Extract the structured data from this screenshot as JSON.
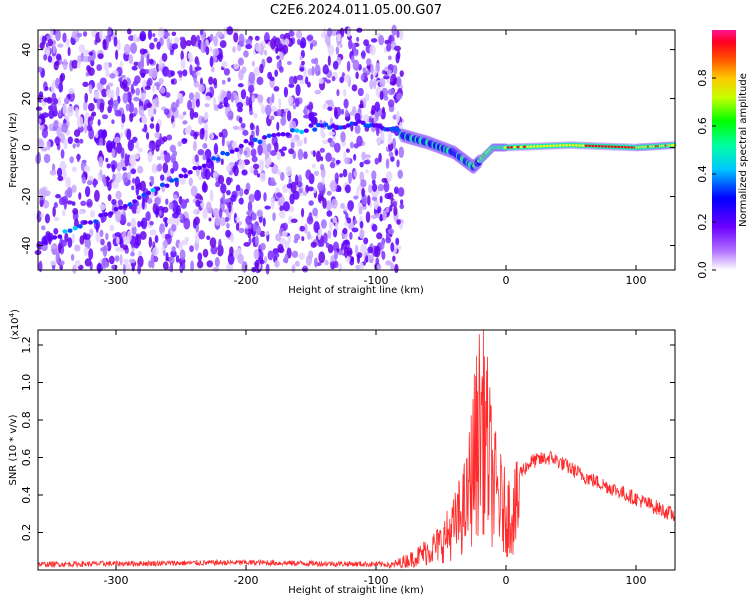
{
  "title": "C2E6.2024.011.05.00.G07",
  "chart_data": [
    {
      "type": "heatmap",
      "title": "C2E6.2024.011.05.00.G07",
      "xlabel": "Height of straight line (km)",
      "ylabel": "Frequency (Hz)",
      "xlim": [
        -360,
        130
      ],
      "ylim": [
        -50,
        48
      ],
      "x_ticks": [
        -300,
        -200,
        -100,
        0,
        100
      ],
      "y_ticks": [
        -40,
        -20,
        0,
        20,
        40
      ],
      "colorbar": {
        "label": "Normalized spectral amplitude",
        "range": [
          0,
          1
        ],
        "ticks": [
          "0.0",
          "0.2",
          "0.4",
          "0.6",
          "0.8"
        ],
        "colors": [
          "#ffffff",
          "#9b30ff",
          "#0000ff",
          "#00ffff",
          "#00ff00",
          "#ffff00",
          "#ff8000",
          "#ff0000",
          "#ff1493"
        ]
      },
      "noise_region_x": [
        -360,
        -80
      ],
      "ridges": [
        {
          "name": "",
          "x": [
            -355,
            -300,
            -250,
            -200,
            -150,
            -110,
            -80
          ],
          "y": [
            -38,
            -26,
            -12,
            2,
            8,
            10,
            7
          ]
        },
        {
          "name": "",
          "x": [
            -80,
            -60,
            -40,
            -25,
            -10,
            0,
            50,
            100,
            130
          ],
          "y": [
            5,
            2,
            -2,
            -8,
            0,
            0,
            1,
            0,
            1
          ]
        }
      ]
    },
    {
      "type": "line",
      "xlabel": "Height of straight line (km)",
      "ylabel": "SNR (10 * v/v)",
      "yscale_note": "(x10",
      "yscale_exp": "4",
      "yscale_close": ")",
      "xlim": [
        -360,
        130
      ],
      "ylim": [
        0,
        1.28
      ],
      "x_ticks": [
        -300,
        -200,
        -100,
        0,
        100
      ],
      "y_ticks": [
        "0.2",
        "0.4",
        "0.6",
        "0.8",
        "1.0",
        "1.2"
      ],
      "color": "#ff2a2a",
      "envelope": [
        {
          "x": -360,
          "y": 0.03
        },
        {
          "x": -200,
          "y": 0.04
        },
        {
          "x": -90,
          "y": 0.03
        },
        {
          "x": -70,
          "y": 0.1
        },
        {
          "x": -50,
          "y": 0.22
        },
        {
          "x": -40,
          "y": 0.35
        },
        {
          "x": -30,
          "y": 0.55
        },
        {
          "x": -25,
          "y": 0.9
        },
        {
          "x": -18,
          "y": 1.28
        },
        {
          "x": -10,
          "y": 0.7
        },
        {
          "x": 0,
          "y": 0.45
        },
        {
          "x": 20,
          "y": 0.58
        },
        {
          "x": 35,
          "y": 0.6
        },
        {
          "x": 60,
          "y": 0.5
        },
        {
          "x": 100,
          "y": 0.38
        },
        {
          "x": 130,
          "y": 0.29
        }
      ]
    }
  ]
}
